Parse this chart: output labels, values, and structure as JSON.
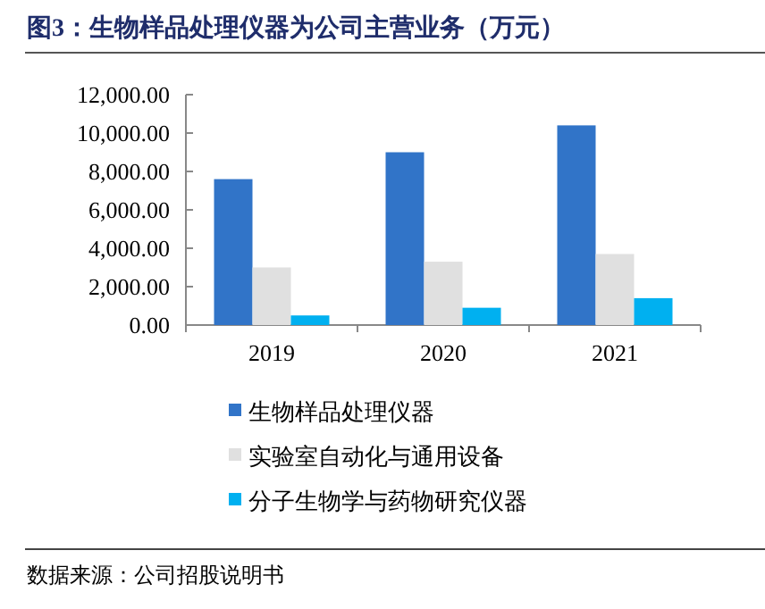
{
  "chart_data": {
    "type": "bar",
    "title": "图3：生物样品处理仪器为公司主营业务（万元）",
    "categories": [
      "2019",
      "2020",
      "2021"
    ],
    "series": [
      {
        "name": "生物样品处理仪器",
        "color": "#3174c8",
        "values": [
          7600,
          9000,
          10400
        ]
      },
      {
        "name": "实验室自动化与通用设备",
        "color": "#e0e0e0",
        "values": [
          3000,
          3300,
          3700
        ]
      },
      {
        "name": "分子生物学与药物研究仪器",
        "color": "#00b0f0",
        "values": [
          500,
          900,
          1400
        ]
      }
    ],
    "ylim": [
      0,
      12000
    ],
    "yticks": [
      {
        "value": 0,
        "label": "0.00"
      },
      {
        "value": 2000,
        "label": "2,000.00"
      },
      {
        "value": 4000,
        "label": "4,000.00"
      },
      {
        "value": 6000,
        "label": "6,000.00"
      },
      {
        "value": 8000,
        "label": "8,000.00"
      },
      {
        "value": 10000,
        "label": "10,000.00"
      },
      {
        "value": 12000,
        "label": "12,000.00"
      }
    ],
    "grid": false,
    "legend": "bottom",
    "annotations": [
      "数据来源：公司招股说明书"
    ]
  }
}
